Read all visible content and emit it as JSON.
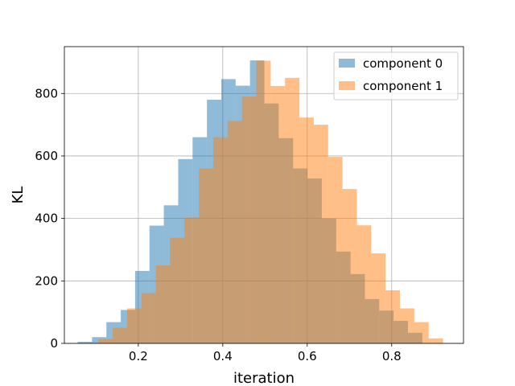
{
  "chart_data": {
    "type": "bar",
    "subtype": "overlapping-histogram",
    "xlabel": "iteration",
    "ylabel": "KL",
    "xlim": [
      0.025,
      0.97
    ],
    "ylim": [
      0,
      950
    ],
    "xticks": [
      0.2,
      0.4,
      0.6,
      0.8
    ],
    "xtick_labels": [
      "0.2",
      "0.4",
      "0.6",
      "0.8"
    ],
    "yticks": [
      0,
      200,
      400,
      600,
      800
    ],
    "ytick_labels": [
      "0",
      "200",
      "400",
      "600",
      "800"
    ],
    "grid": true,
    "legend": {
      "position": "top-right",
      "entries": [
        "component 0",
        "component 1"
      ]
    },
    "series": [
      {
        "name": "component 0",
        "color": "#1f77b4",
        "alpha": 0.5,
        "bins": [
          0.0565,
          0.0905,
          0.1245,
          0.1585,
          0.1925,
          0.2265,
          0.2605,
          0.2945,
          0.3285,
          0.3625,
          0.3965,
          0.4305,
          0.4645,
          0.4985,
          0.5325,
          0.5665,
          0.6005,
          0.6345,
          0.6685,
          0.7025,
          0.7365,
          0.7705,
          0.8045,
          0.8385,
          0.8725
        ],
        "values": [
          5,
          20,
          68,
          107,
          232,
          377,
          442,
          590,
          660,
          780,
          846,
          825,
          906,
          768,
          657,
          560,
          528,
          400,
          294,
          222,
          142,
          105,
          72,
          34
        ]
      },
      {
        "name": "component 1",
        "color": "#ff7f0e",
        "alpha": 0.5,
        "bins": [
          0.1055,
          0.1395,
          0.1735,
          0.2075,
          0.2415,
          0.2755,
          0.3095,
          0.3435,
          0.3775,
          0.4115,
          0.4455,
          0.4795,
          0.5135,
          0.5475,
          0.5815,
          0.6155,
          0.6495,
          0.6835,
          0.7175,
          0.7515,
          0.7855,
          0.8195,
          0.8535,
          0.8875,
          0.9215
        ],
        "values": [
          14,
          50,
          112,
          161,
          250,
          338,
          403,
          560,
          660,
          712,
          790,
          905,
          824,
          850,
          723,
          700,
          597,
          494,
          378,
          288,
          170,
          112,
          68,
          16
        ]
      }
    ]
  }
}
